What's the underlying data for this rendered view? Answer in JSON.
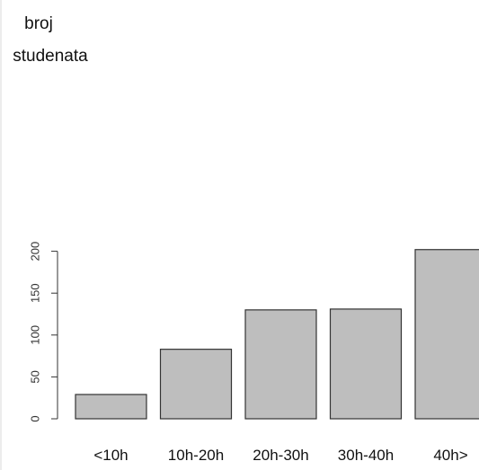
{
  "chart_data": {
    "type": "bar",
    "title": "",
    "ylabel": [
      "broj",
      "studenata"
    ],
    "xlabel": "",
    "categories": [
      "<10h",
      "10h-20h",
      "20h-30h",
      "30h-40h",
      "40h>"
    ],
    "values": [
      29,
      83,
      130,
      131,
      202
    ],
    "yticks": [
      0,
      50,
      100,
      150,
      200
    ],
    "ylim": [
      0,
      200
    ],
    "grid": false,
    "bar_color": "#bebebe",
    "bar_border_color": "#333333"
  }
}
